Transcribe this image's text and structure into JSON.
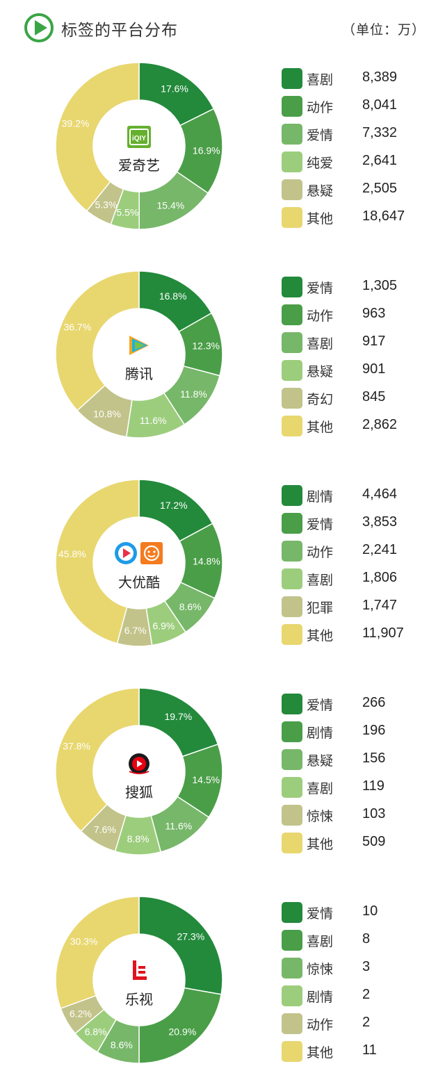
{
  "header": {
    "title": "标签的平台分布",
    "unit": "（单位：万）",
    "icon": "play-circle-icon",
    "accent_color": "#3aa545"
  },
  "palette": [
    "#238a3c",
    "#4a9e47",
    "#77b76a",
    "#9ccd7d",
    "#c2c38a",
    "#e8d66e"
  ],
  "chart_data": [
    {
      "type": "pie",
      "platform": "爱奇艺",
      "logo_icon": "iqiyi-logo-icon",
      "categories": [
        "喜剧",
        "动作",
        "爱情",
        "纯爱",
        "悬疑",
        "其他"
      ],
      "values": [
        8389,
        8041,
        7332,
        2641,
        2505,
        18647
      ],
      "value_labels": [
        "8,389",
        "8,041",
        "7,332",
        "2,641",
        "2,505",
        "18,647"
      ],
      "percent_labels": [
        "17.6%",
        "16.9%",
        "15.4%",
        "5.5%",
        "5.3%",
        "39.2%"
      ]
    },
    {
      "type": "pie",
      "platform": "腾讯",
      "logo_icon": "tencent-video-logo-icon",
      "categories": [
        "爱情",
        "动作",
        "喜剧",
        "悬疑",
        "奇幻",
        "其他"
      ],
      "values": [
        1305,
        963,
        917,
        901,
        845,
        2862
      ],
      "value_labels": [
        "1,305",
        "963",
        "917",
        "901",
        "845",
        "2,862"
      ],
      "percent_labels": [
        "16.8%",
        "12.3%",
        "11.8%",
        "11.6%",
        "10.8%",
        "36.7%"
      ]
    },
    {
      "type": "pie",
      "platform": "大优酷",
      "logo_icon": "youku-tudou-logo-icon",
      "categories": [
        "剧情",
        "爱情",
        "动作",
        "喜剧",
        "犯罪",
        "其他"
      ],
      "values": [
        4464,
        3853,
        2241,
        1806,
        1747,
        11907
      ],
      "value_labels": [
        "4,464",
        "3,853",
        "2,241",
        "1,806",
        "1,747",
        "11,907"
      ],
      "percent_labels": [
        "17.2%",
        "14.8%",
        "8.6%",
        "6.9%",
        "6.7%",
        "45.8%"
      ]
    },
    {
      "type": "pie",
      "platform": "搜狐",
      "logo_icon": "sohu-video-logo-icon",
      "categories": [
        "爱情",
        "剧情",
        "悬疑",
        "喜剧",
        "惊悚",
        "其他"
      ],
      "values": [
        266,
        196,
        156,
        119,
        103,
        509
      ],
      "value_labels": [
        "266",
        "196",
        "156",
        "119",
        "103",
        "509"
      ],
      "percent_labels": [
        "19.7%",
        "14.5%",
        "11.6%",
        "8.8%",
        "7.6%",
        "37.8%"
      ]
    },
    {
      "type": "pie",
      "platform": "乐视",
      "logo_icon": "letv-logo-icon",
      "categories": [
        "爱情",
        "喜剧",
        "惊悚",
        "剧情",
        "动作",
        "其他"
      ],
      "values": [
        10,
        8,
        3,
        2,
        2,
        11
      ],
      "value_labels": [
        "10",
        "8",
        "3",
        "2",
        "2",
        "11"
      ],
      "percent_labels": [
        "27.3%",
        "20.9%",
        "8.6%",
        "6.8%",
        "6.2%",
        "30.3%"
      ]
    }
  ]
}
